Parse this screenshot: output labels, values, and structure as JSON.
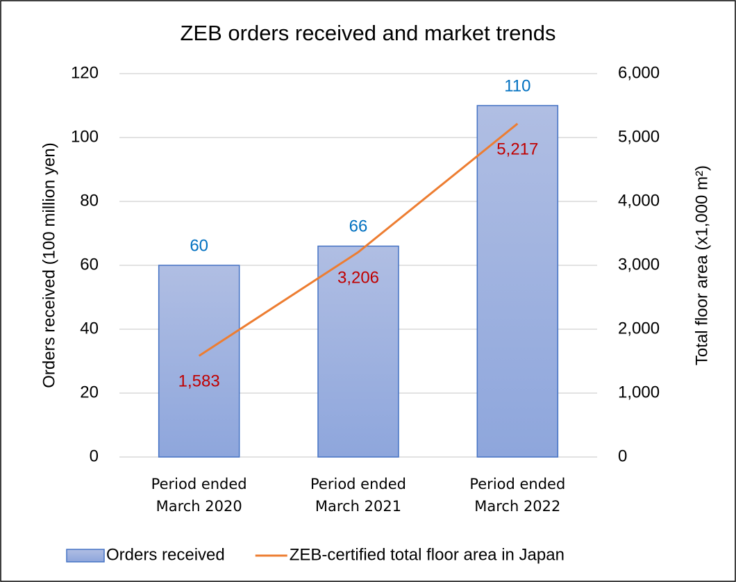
{
  "chart_data": {
    "type": "bar",
    "title": "ZEB orders received and market trends",
    "categories": [
      "Period ended\nMarch 2020",
      "Period ended\nMarch 2021",
      "Period ended\nMarch 2022"
    ],
    "series": [
      {
        "name": "Orders received",
        "type": "bar",
        "color": "#8ea6dc",
        "values": [
          60,
          66,
          110
        ]
      },
      {
        "name": "ZEB-certified total floor area in Japan",
        "type": "line",
        "axis": "y2",
        "color": "#ed7d31",
        "values": [
          1583,
          3206,
          5217
        ],
        "value_labels": [
          "1,583",
          "3,206",
          "5,217"
        ]
      }
    ],
    "ylabel": "Orders received (100 million yen)",
    "y2label": "Total floor area (x1,000 m²)",
    "ylim": [
      0,
      120
    ],
    "yticks": [
      0,
      20,
      40,
      60,
      80,
      100,
      120
    ],
    "y2lim": [
      0,
      6000
    ],
    "y2ticks": [
      0,
      {
        "value": 1000,
        "label": "1,000"
      },
      {
        "value": 2000,
        "label": "2,000"
      },
      {
        "value": 3000,
        "label": "3,000"
      },
      {
        "value": 4000,
        "label": "4,000"
      },
      {
        "value": 5000,
        "label": "5,000"
      },
      {
        "value": 6000,
        "label": "6,000"
      }
    ],
    "grid": true,
    "legend": "bottom"
  }
}
